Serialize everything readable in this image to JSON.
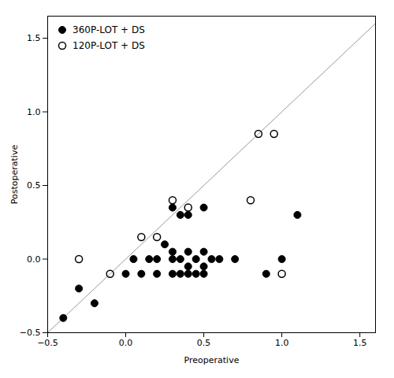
{
  "chart_data": {
    "type": "scatter",
    "xlabel": "Preoperative",
    "ylabel": "Postoperative",
    "xlim": [
      -0.5,
      1.6
    ],
    "ylim": [
      -0.5,
      1.65
    ],
    "xticks": [
      -0.5,
      {
        "value": 0,
        "label": "0.0"
      },
      0.5,
      {
        "value": 1,
        "label": "1.0"
      },
      1.5
    ],
    "yticks": [
      -0.5,
      {
        "value": 0,
        "label": "0.0"
      },
      0.5,
      {
        "value": 1,
        "label": "1.0"
      },
      1.5
    ],
    "legend": "upper left",
    "series": [
      {
        "type": "line",
        "color": "#999999",
        "x": [
          -0.5,
          1.6
        ],
        "values": [
          -0.5,
          1.6
        ]
      },
      {
        "name": "360P-LOT + DS",
        "type": "scatter",
        "marker": "circle",
        "color": "#000000",
        "x": [
          -0.4,
          -0.3,
          -0.2,
          0.0,
          0.05,
          0.1,
          0.15,
          0.2,
          0.2,
          0.25,
          0.3,
          0.3,
          0.3,
          0.3,
          0.35,
          0.35,
          0.35,
          0.4,
          0.4,
          0.4,
          0.4,
          0.45,
          0.45,
          0.5,
          0.5,
          0.5,
          0.5,
          0.55,
          0.6,
          0.7,
          0.9,
          1.0,
          1.1
        ],
        "values": [
          -0.4,
          -0.2,
          -0.3,
          -0.1,
          0.0,
          -0.1,
          0.0,
          -0.1,
          0.0,
          0.1,
          -0.1,
          0.0,
          0.05,
          0.35,
          -0.1,
          0.0,
          0.3,
          -0.1,
          -0.05,
          0.05,
          0.3,
          -0.1,
          0.0,
          -0.1,
          -0.05,
          0.05,
          0.35,
          0.0,
          0.0,
          0.0,
          -0.1,
          0.0,
          0.3
        ]
      },
      {
        "name": "120P-LOT + DS",
        "type": "scatter",
        "marker": "open circle",
        "color": "#000000",
        "x": [
          -0.3,
          -0.1,
          0.1,
          0.2,
          0.3,
          0.4,
          0.8,
          0.85,
          0.95,
          1.0
        ],
        "values": [
          0.0,
          -0.1,
          0.15,
          0.15,
          0.4,
          0.35,
          0.4,
          0.85,
          0.85,
          -0.1
        ]
      }
    ]
  }
}
